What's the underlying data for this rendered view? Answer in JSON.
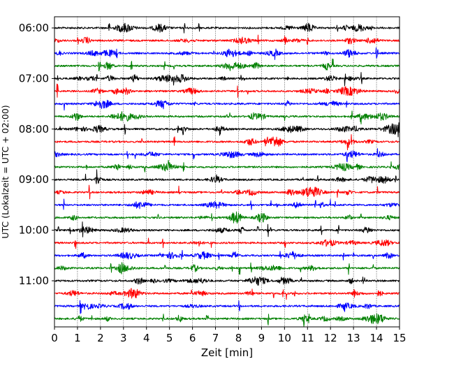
{
  "chart_data": {
    "type": "line",
    "title": "",
    "xlabel": "Zeit  [min]",
    "ylabel": "UTC (Lokalzeit = UTC + 02:00)",
    "xlim": [
      0,
      15
    ],
    "x_ticks": [
      0,
      1,
      2,
      3,
      4,
      5,
      6,
      7,
      8,
      9,
      10,
      11,
      12,
      13,
      14,
      15
    ],
    "x_grid": true,
    "y_ticks": [
      "06:00",
      "07:00",
      "08:00",
      "09:00",
      "10:00",
      "11:00"
    ],
    "traces_per_hour": 4,
    "trace_colors": [
      "#000000",
      "#ff0000",
      "#0000ff",
      "#008000"
    ],
    "trace_rows": [
      {
        "start": "06:00",
        "color": "#000000"
      },
      {
        "start": "06:15",
        "color": "#ff0000"
      },
      {
        "start": "06:30",
        "color": "#0000ff"
      },
      {
        "start": "06:45",
        "color": "#008000"
      },
      {
        "start": "07:00",
        "color": "#000000"
      },
      {
        "start": "07:15",
        "color": "#ff0000"
      },
      {
        "start": "07:30",
        "color": "#0000ff"
      },
      {
        "start": "07:45",
        "color": "#008000"
      },
      {
        "start": "08:00",
        "color": "#000000"
      },
      {
        "start": "08:15",
        "color": "#ff0000"
      },
      {
        "start": "08:30",
        "color": "#0000ff"
      },
      {
        "start": "08:45",
        "color": "#008000"
      },
      {
        "start": "09:00",
        "color": "#000000"
      },
      {
        "start": "09:15",
        "color": "#ff0000"
      },
      {
        "start": "09:30",
        "color": "#0000ff"
      },
      {
        "start": "09:45",
        "color": "#008000"
      },
      {
        "start": "10:00",
        "color": "#000000"
      },
      {
        "start": "10:15",
        "color": "#ff0000"
      },
      {
        "start": "10:30",
        "color": "#0000ff"
      },
      {
        "start": "10:45",
        "color": "#008000"
      },
      {
        "start": "11:00",
        "color": "#000000"
      },
      {
        "start": "11:15",
        "color": "#ff0000"
      },
      {
        "start": "11:30",
        "color": "#0000ff"
      },
      {
        "start": "11:45",
        "color": "#008000"
      }
    ]
  }
}
